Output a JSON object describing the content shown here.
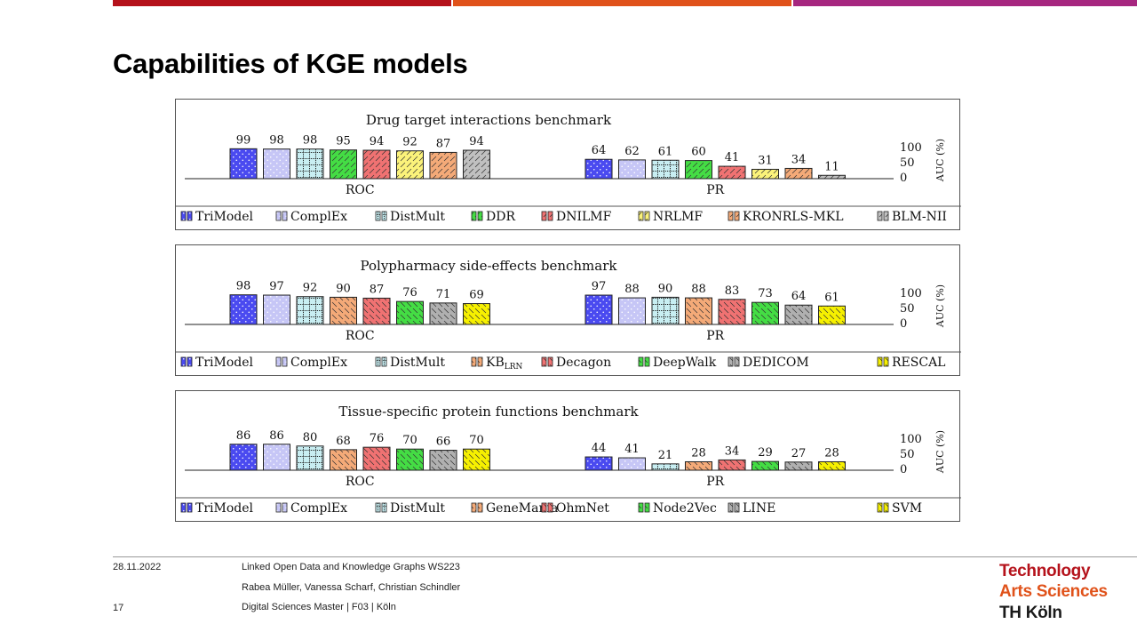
{
  "slide": {
    "title": "Capabilities of KGE models",
    "colors": {
      "bar_red": "#b5121b",
      "bar_orange": "#e0521a",
      "bar_purple": "#a6267f"
    }
  },
  "footer": {
    "date": "28.11.2022",
    "course": "Linked Open Data and Knowledge Graphs WS223",
    "authors": "Rabea Müller, Vanessa Scharf, Christian Schindler",
    "page_number": "17",
    "program": "Digital Sciences Master | F03 | Köln",
    "logo_line1": "Technology",
    "logo_line2": "Arts Sciences",
    "logo_line3": "TH Köln"
  },
  "chart_data": [
    {
      "type": "bar",
      "title": "Drug target interactions benchmark",
      "groups": [
        "ROC",
        "PR"
      ],
      "ylabel": "AUC (%)",
      "yticks": [
        "100",
        "50",
        "0"
      ],
      "ylim": [
        0,
        100
      ],
      "legend_position": "bottom",
      "series": [
        {
          "name": "TriModel",
          "values": [
            99,
            64
          ],
          "color": "#4a4af0",
          "pattern": "dots"
        },
        {
          "name": "ComplEx",
          "values": [
            98,
            62
          ],
          "color": "#c6c6f6",
          "pattern": "dots"
        },
        {
          "name": "DistMult",
          "values": [
            98,
            61
          ],
          "color": "#c8eef2",
          "pattern": "grid"
        },
        {
          "name": "DDR",
          "values": [
            95,
            60
          ],
          "color": "#44dd44",
          "pattern": "hatch"
        },
        {
          "name": "DNILMF",
          "values": [
            94,
            41
          ],
          "color": "#f07272",
          "pattern": "hatch"
        },
        {
          "name": "NRLMF",
          "values": [
            92,
            31
          ],
          "color": "#fbf27a",
          "pattern": "hatch"
        },
        {
          "name": "KRONRLS-MKL",
          "values": [
            87,
            34
          ],
          "color": "#f4aa78",
          "pattern": "hatch"
        },
        {
          "name": "BLM-NII",
          "values": [
            94,
            11
          ],
          "color": "#c0c0c0",
          "pattern": "hatch"
        }
      ]
    },
    {
      "type": "bar",
      "title": "Polypharmacy side-effects benchmark",
      "groups": [
        "ROC",
        "PR"
      ],
      "ylabel": "AUC (%)",
      "yticks": [
        "100",
        "50",
        "0"
      ],
      "ylim": [
        0,
        100
      ],
      "legend_position": "bottom",
      "series": [
        {
          "name": "TriModel",
          "values": [
            98,
            97
          ],
          "color": "#4a4af0",
          "pattern": "dots"
        },
        {
          "name": "ComplEx",
          "values": [
            97,
            88
          ],
          "color": "#c6c6f6",
          "pattern": "dots"
        },
        {
          "name": "DistMult",
          "values": [
            92,
            90
          ],
          "color": "#c8eef2",
          "pattern": "grid"
        },
        {
          "name": "KB",
          "sub": "LRN",
          "values": [
            90,
            88
          ],
          "color": "#f4aa78",
          "pattern": "backhatch"
        },
        {
          "name": "Decagon",
          "values": [
            87,
            83
          ],
          "color": "#f07272",
          "pattern": "backhatch"
        },
        {
          "name": "DeepWalk",
          "values": [
            76,
            73
          ],
          "color": "#44dd44",
          "pattern": "backhatch"
        },
        {
          "name": "DEDICOM",
          "values": [
            71,
            64
          ],
          "color": "#b0b0b0",
          "pattern": "backhatch"
        },
        {
          "name": "RESCAL",
          "values": [
            69,
            61
          ],
          "color": "#f6f000",
          "pattern": "backhatch"
        }
      ]
    },
    {
      "type": "bar",
      "title": "Tissue-specific protein functions benchmark",
      "groups": [
        "ROC",
        "PR"
      ],
      "ylabel": "AUC (%)",
      "yticks": [
        "100",
        "50",
        "0"
      ],
      "ylim": [
        0,
        100
      ],
      "legend_position": "bottom",
      "series": [
        {
          "name": "TriModel",
          "values": [
            86,
            44
          ],
          "color": "#4a4af0",
          "pattern": "dots"
        },
        {
          "name": "ComplEx",
          "values": [
            86,
            41
          ],
          "color": "#c6c6f6",
          "pattern": "dots"
        },
        {
          "name": "DistMult",
          "values": [
            80,
            21
          ],
          "color": "#c8eef2",
          "pattern": "grid"
        },
        {
          "name": "GeneMania",
          "values": [
            68,
            28
          ],
          "color": "#f4aa78",
          "pattern": "backhatch"
        },
        {
          "name": "OhmNet",
          "values": [
            76,
            34
          ],
          "color": "#f07272",
          "pattern": "backhatch"
        },
        {
          "name": "Node2Vec",
          "values": [
            70,
            29
          ],
          "color": "#44dd44",
          "pattern": "backhatch"
        },
        {
          "name": "LINE",
          "values": [
            66,
            27
          ],
          "color": "#b0b0b0",
          "pattern": "backhatch"
        },
        {
          "name": "SVM",
          "values": [
            70,
            28
          ],
          "color": "#f6f000",
          "pattern": "backhatch"
        }
      ]
    }
  ]
}
